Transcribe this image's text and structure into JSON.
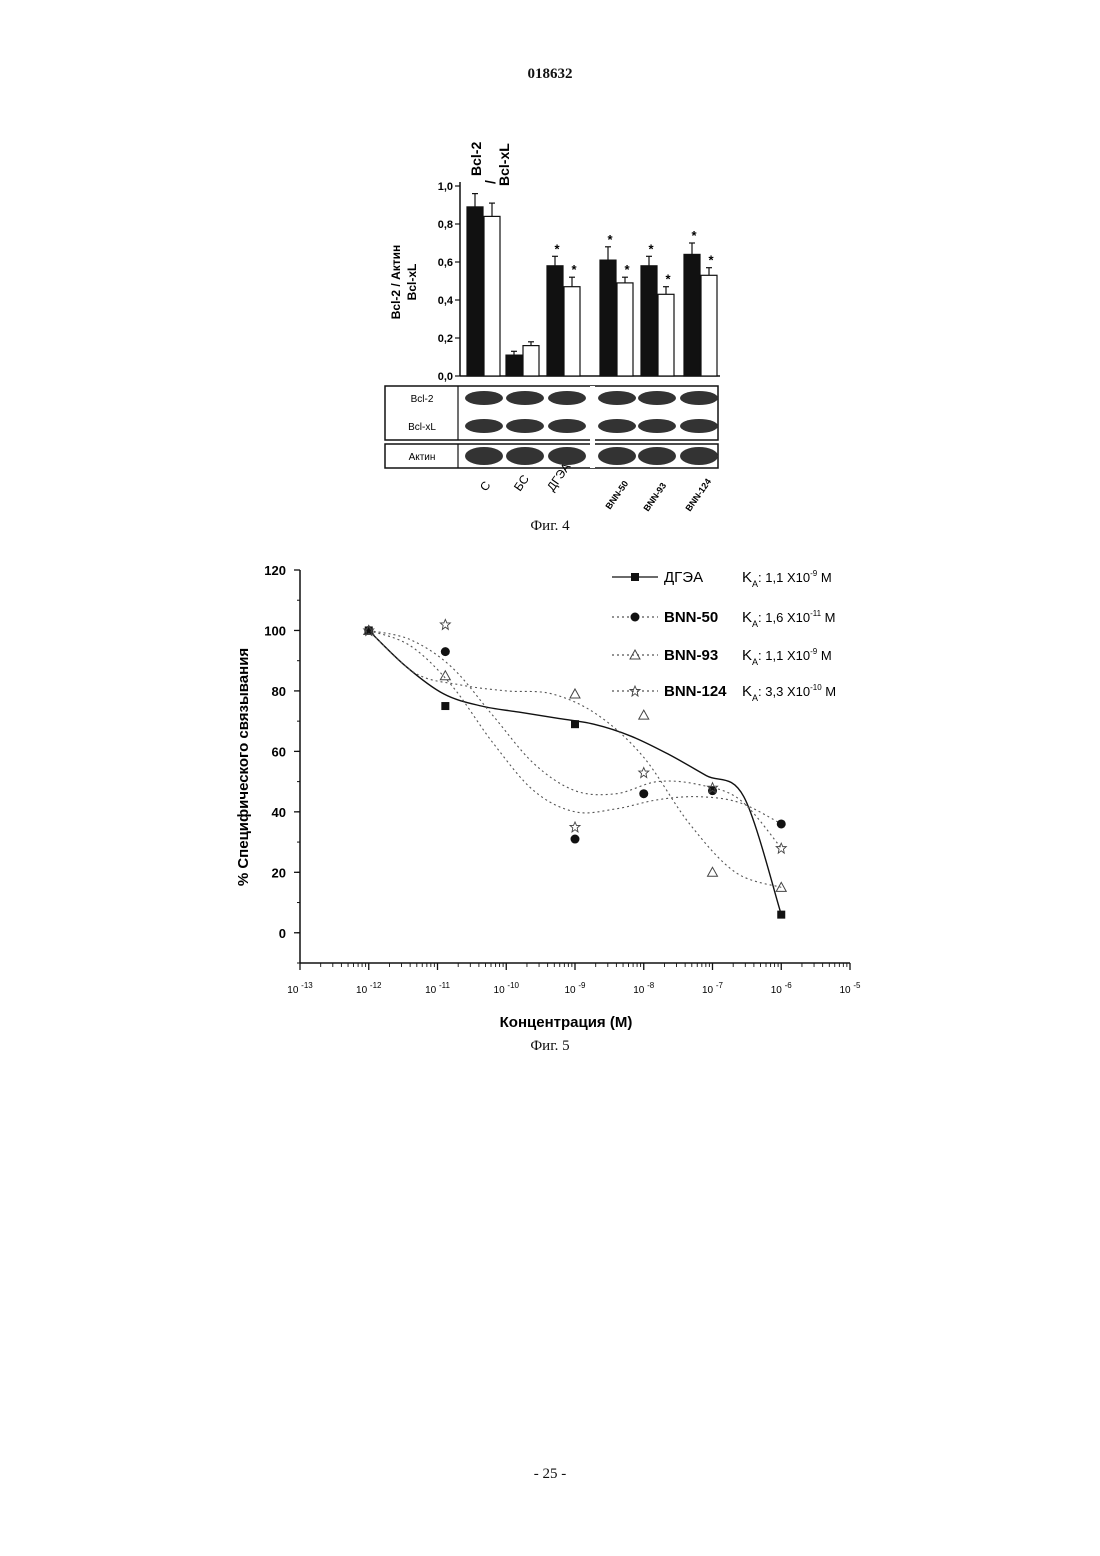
{
  "header": {
    "document_number": "018632"
  },
  "footer": {
    "page_number": "- 25 -"
  },
  "figures": [
    {
      "caption": "Фиг. 4"
    },
    {
      "caption": "Фиг. 5"
    }
  ],
  "colors": {
    "ink": "#111111",
    "bar_bcl2": "#111111",
    "bar_bclxl": "#ffffff",
    "blot_band": "#333333"
  },
  "chart_data": [
    {
      "type": "bar",
      "title": "",
      "ylabel_lines": [
        "Bcl-2  /  Актин",
        "Bcl-xL"
      ],
      "legend": [
        "Bcl-2",
        "Bcl-xL"
      ],
      "legend_separator": "/",
      "ylim": [
        0,
        1.0
      ],
      "yticks": [
        "0,0",
        "0,2",
        "0,4",
        "0,6",
        "0,8",
        "1,0"
      ],
      "categories": [
        "С",
        "БС",
        "ДГЭА",
        "BNN-50",
        "BNN-93",
        "BNN-124"
      ],
      "series": [
        {
          "name": "Bcl-2",
          "values": [
            0.89,
            0.11,
            0.58,
            0.61,
            0.58,
            0.64
          ],
          "errors": [
            0.07,
            0.02,
            0.05,
            0.07,
            0.05,
            0.06
          ],
          "significant": [
            false,
            false,
            true,
            true,
            true,
            true
          ]
        },
        {
          "name": "Bcl-xL",
          "values": [
            0.84,
            0.16,
            0.47,
            0.49,
            0.43,
            0.53
          ],
          "errors": [
            0.07,
            0.02,
            0.05,
            0.03,
            0.04,
            0.04
          ],
          "significant": [
            false,
            false,
            true,
            true,
            true,
            true
          ]
        }
      ],
      "significance_mark": "*",
      "blot_rows": [
        "Bcl-2",
        "Bcl-xL",
        "Актин"
      ]
    },
    {
      "type": "scatter",
      "title": "",
      "xlabel": "Концентрация (М)",
      "ylabel": "% Специфического связывания",
      "xscale": "log",
      "xlim": [
        1e-13,
        1e-05
      ],
      "ylim": [
        -10,
        120
      ],
      "xtick_labels": [
        {
          "base": "10",
          "exp": "-13"
        },
        {
          "base": "10",
          "exp": "-12"
        },
        {
          "base": "10",
          "exp": "-11"
        },
        {
          "base": "10",
          "exp": "-10"
        },
        {
          "base": "10",
          "exp": "-9"
        },
        {
          "base": "10",
          "exp": "-8"
        },
        {
          "base": "10",
          "exp": "-7"
        },
        {
          "base": "10",
          "exp": "-6"
        },
        {
          "base": "10",
          "exp": "-5"
        }
      ],
      "yticks": [
        "0",
        "20",
        "40",
        "60",
        "80",
        "100",
        "120"
      ],
      "legend_position": "top-right",
      "series": [
        {
          "name": "ДГЭА",
          "kd_label": "K",
          "kd_sub": "A",
          "kd_text": ": 1,1 X10",
          "kd_exp": "-9",
          "kd_unit": " M",
          "marker": "square",
          "line": "solid",
          "x": [
            1e-12,
            1.3e-11,
            1e-09,
            1e-06
          ],
          "y": [
            100,
            75,
            69,
            6
          ],
          "curve_y": [
            100,
            88,
            79,
            75,
            73,
            71,
            69,
            65,
            59,
            52,
            45,
            6
          ]
        },
        {
          "name": "BNN-50",
          "kd_label": "K",
          "kd_sub": "A",
          "kd_text": ": 1,6 X10",
          "kd_exp": "-11",
          "kd_unit": " M",
          "marker": "circle",
          "line": "dotted",
          "x": [
            1e-12,
            1.3e-11,
            1e-09,
            1e-08,
            1e-07,
            1e-06
          ],
          "y": [
            100,
            93,
            31,
            46,
            47,
            36
          ],
          "curve_y": [
            100,
            95,
            82,
            63,
            47,
            40,
            41,
            44,
            45,
            43,
            36
          ]
        },
        {
          "name": "BNN-93",
          "kd_label": "K",
          "kd_sub": "A",
          "kd_text": ": 1,1 X10",
          "kd_exp": "-9",
          "kd_unit": " M",
          "marker": "triangle",
          "line": "dotted",
          "x": [
            1e-12,
            1.3e-11,
            1e-09,
            1e-08,
            1e-07,
            1e-06
          ],
          "y": [
            100,
            85,
            79,
            72,
            20,
            15
          ],
          "curve_y": [
            100,
            86,
            82,
            80,
            79,
            72,
            58,
            36,
            20,
            15
          ]
        },
        {
          "name": "BNN-124",
          "kd_label": "K",
          "kd_sub": "A",
          "kd_text": ": 3,3 X10",
          "kd_exp": "-10",
          "kd_unit": " M",
          "marker": "star",
          "line": "dotted",
          "x": [
            1e-12,
            1.3e-11,
            1e-09,
            1e-08,
            1e-07,
            1e-06
          ],
          "y": [
            100,
            102,
            35,
            53,
            48,
            28
          ],
          "curve_y": [
            100,
            97,
            88,
            72,
            56,
            47,
            46,
            50,
            49,
            44,
            28
          ]
        }
      ]
    }
  ]
}
